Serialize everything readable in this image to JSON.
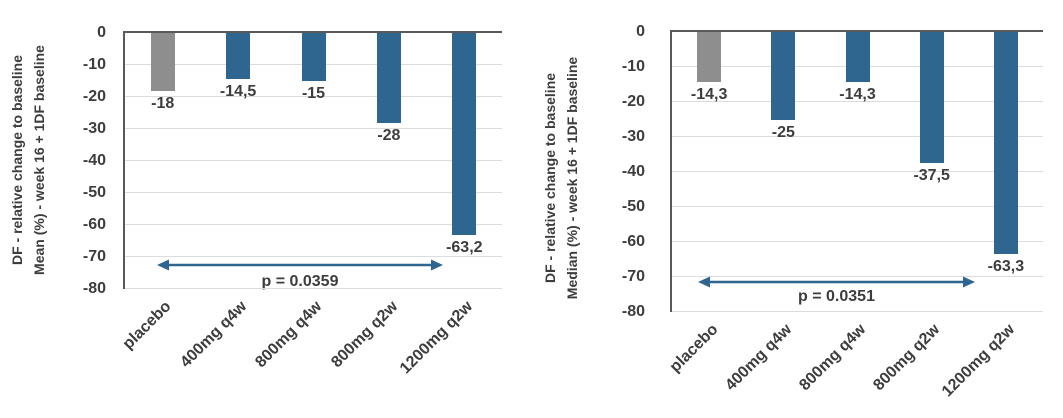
{
  "colors": {
    "bar_blue": "#2F6690",
    "bar_gray": "#8E8E8E",
    "arrow": "#2F6690",
    "axis_line": "#595959",
    "gridline": "#DCDCDC",
    "text": "#3D3D3D"
  },
  "chart_data": [
    {
      "type": "bar",
      "panel": "left",
      "ylabel_line1": "DF - relative change to baseline",
      "ylabel_line2": "Mean (%) - week 16 + 1DF baseline",
      "categories": [
        "placebo",
        "400mg q4w",
        "800mg q4w",
        "800mg q2w",
        "1200mg q2w"
      ],
      "values": [
        -18,
        -14.5,
        -15,
        -28,
        -63.2
      ],
      "value_labels": [
        "-18",
        "-14,5",
        "-15",
        "-28",
        "-63,2"
      ],
      "bar_colors": [
        "gray",
        "blue",
        "blue",
        "blue",
        "blue"
      ],
      "ylim": [
        -80,
        0
      ],
      "ytick_labels": [
        "0",
        "-10",
        "-20",
        "-30",
        "-40",
        "-50",
        "-60",
        "-70",
        "-80"
      ],
      "grid": true,
      "legend": "none",
      "annotation": {
        "text": "p = 0.0359",
        "style": "double-arrow",
        "from_category": "placebo",
        "to_category": "1200mg q2w"
      }
    },
    {
      "type": "bar",
      "panel": "right",
      "ylabel_line1": "DF - relative change to baseline",
      "ylabel_line2": "Median (%) - week 16 + 1DF baseline",
      "categories": [
        "placebo",
        "400mg q4w",
        "800mg q4w",
        "800mg q2w",
        "1200mg q2w"
      ],
      "values": [
        -14.3,
        -25,
        -14.3,
        -37.5,
        -63.3
      ],
      "value_labels": [
        "-14,3",
        "-25",
        "-14,3",
        "-37,5",
        "-63,3"
      ],
      "bar_colors": [
        "gray",
        "blue",
        "blue",
        "blue",
        "blue"
      ],
      "ylim": [
        -80,
        0
      ],
      "ytick_labels": [
        "0",
        "-10",
        "-20",
        "-30",
        "-40",
        "-50",
        "-60",
        "-70",
        "-80"
      ],
      "grid": true,
      "legend": "none",
      "annotation": {
        "text": "p = 0.0351",
        "style": "double-arrow",
        "from_category": "placebo",
        "to_category": "1200mg q2w"
      }
    }
  ]
}
